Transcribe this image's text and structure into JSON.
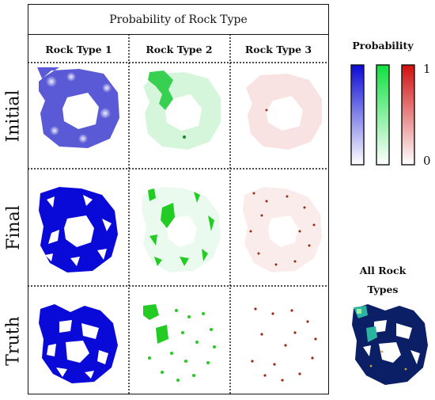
{
  "figure": {
    "title": "Probability of Rock Type",
    "columns": [
      "Rock Type 1",
      "Rock Type 2",
      "Rock Type 3"
    ],
    "rows": [
      "Initial",
      "Final",
      "Truth"
    ],
    "legend": {
      "title": "Probability",
      "max_label": "1",
      "min_label": "0",
      "bars": [
        {
          "name": "rock-type-1",
          "color": "#1010e0"
        },
        {
          "name": "rock-type-2",
          "color": "#10e040"
        },
        {
          "name": "rock-type-3",
          "color": "#d01010"
        }
      ]
    },
    "all_types": {
      "label_line1": "All Rock",
      "label_line2": "Types"
    },
    "palette": {
      "rock_type_1": "#0a0ad8",
      "rock_type_2": "#22cc22",
      "rock_type_3": "#9a2a10",
      "all_types_bg": "#0a1f66",
      "all_types_mid": "#2bb5a0",
      "all_types_light": "#9ef0a8"
    }
  }
}
